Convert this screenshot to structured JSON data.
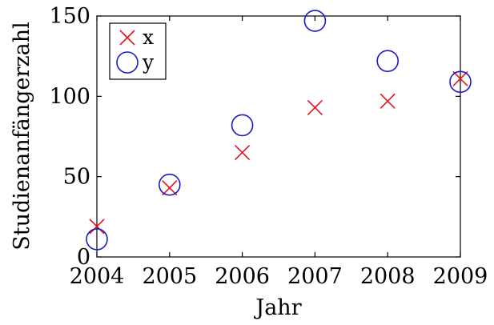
{
  "chart_data": {
    "type": "scatter",
    "title": "",
    "xlabel": "Jahr",
    "ylabel": "Studienanfängerzahl",
    "x": [
      2004,
      2005,
      2006,
      2007,
      2008,
      2009
    ],
    "xlim": [
      2004,
      2009
    ],
    "ylim": [
      0,
      150
    ],
    "xticks": [
      "2004",
      "2005",
      "2006",
      "2007",
      "2008",
      "2009"
    ],
    "yticks": [
      "0",
      "50",
      "100",
      "150"
    ],
    "grid": false,
    "legend_position": "top-left",
    "series": [
      {
        "name": "x",
        "marker": "cross",
        "color": "#e8121e",
        "values": [
          19,
          43,
          65,
          93,
          97,
          111
        ]
      },
      {
        "name": "y",
        "marker": "circle",
        "color": "#1a1acc",
        "values": [
          11,
          45,
          82,
          147,
          122,
          109
        ]
      }
    ]
  }
}
